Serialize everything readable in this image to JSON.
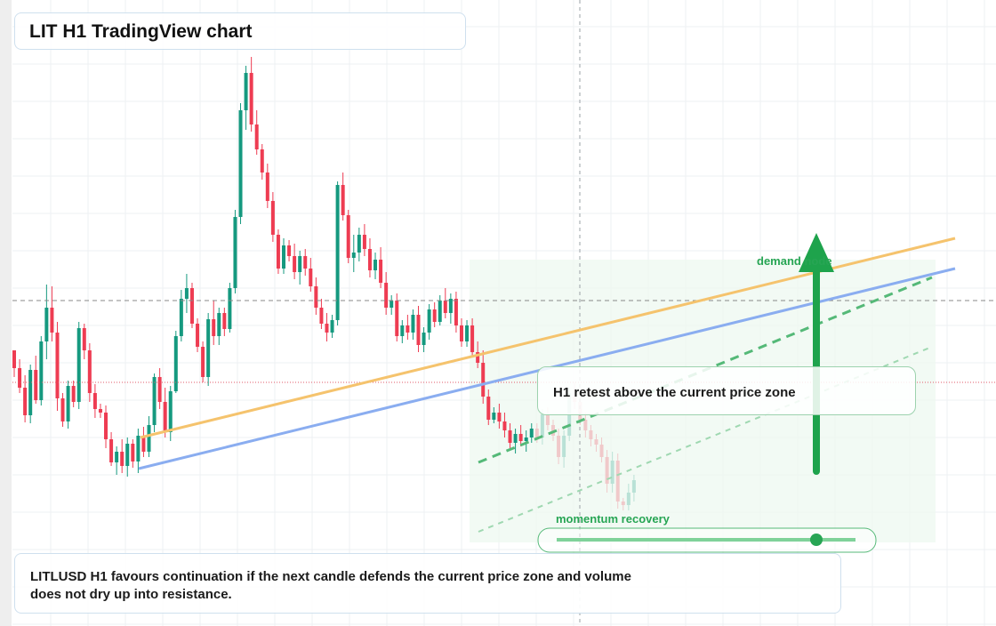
{
  "title": "LIT H1 TradingView chart",
  "annotations": {
    "retest_note": "H1 retest above the current price zone",
    "demand_label": "demand node",
    "momentum_label": "momentum recovery",
    "summary": "LITLUSD H1 favours continuation if the next candle defends the current price zone and volume does not dry up into resistance."
  },
  "colors": {
    "up": "#15997f",
    "down": "#ee3c52",
    "trend_orange": "#f5c36d",
    "trend_blue": "#8aadf0",
    "accent_green": "#1ea34c"
  },
  "chart_data": {
    "type": "candlestick",
    "title": "LIT H1 TradingView chart",
    "ylim": [
      0,
      704
    ],
    "grid": true,
    "reference_levels": [
      366,
      274
    ],
    "candles": [
      {
        "o": 310,
        "h": 310,
        "l": 280,
        "c": 290
      },
      {
        "o": 290,
        "h": 300,
        "l": 262,
        "c": 268
      },
      {
        "o": 268,
        "h": 282,
        "l": 229,
        "c": 237
      },
      {
        "o": 237,
        "h": 294,
        "l": 228,
        "c": 288
      },
      {
        "o": 288,
        "h": 304,
        "l": 250,
        "c": 254
      },
      {
        "o": 254,
        "h": 326,
        "l": 248,
        "c": 320
      },
      {
        "o": 320,
        "h": 384,
        "l": 300,
        "c": 358
      },
      {
        "o": 358,
        "h": 382,
        "l": 320,
        "c": 330
      },
      {
        "o": 330,
        "h": 342,
        "l": 242,
        "c": 256
      },
      {
        "o": 256,
        "h": 262,
        "l": 224,
        "c": 230
      },
      {
        "o": 230,
        "h": 276,
        "l": 222,
        "c": 270
      },
      {
        "o": 270,
        "h": 276,
        "l": 246,
        "c": 252
      },
      {
        "o": 252,
        "h": 342,
        "l": 244,
        "c": 335
      },
      {
        "o": 335,
        "h": 340,
        "l": 300,
        "c": 310
      },
      {
        "o": 310,
        "h": 318,
        "l": 252,
        "c": 262
      },
      {
        "o": 262,
        "h": 272,
        "l": 234,
        "c": 244
      },
      {
        "o": 244,
        "h": 250,
        "l": 234,
        "c": 240
      },
      {
        "o": 240,
        "h": 248,
        "l": 200,
        "c": 210
      },
      {
        "o": 210,
        "h": 218,
        "l": 180,
        "c": 184
      },
      {
        "o": 184,
        "h": 202,
        "l": 170,
        "c": 196
      },
      {
        "o": 196,
        "h": 210,
        "l": 172,
        "c": 180
      },
      {
        "o": 180,
        "h": 212,
        "l": 168,
        "c": 205
      },
      {
        "o": 205,
        "h": 210,
        "l": 178,
        "c": 185
      },
      {
        "o": 185,
        "h": 222,
        "l": 172,
        "c": 214
      },
      {
        "o": 214,
        "h": 224,
        "l": 190,
        "c": 196
      },
      {
        "o": 196,
        "h": 236,
        "l": 190,
        "c": 226
      },
      {
        "o": 226,
        "h": 284,
        "l": 218,
        "c": 280
      },
      {
        "o": 280,
        "h": 290,
        "l": 244,
        "c": 252
      },
      {
        "o": 252,
        "h": 268,
        "l": 212,
        "c": 218
      },
      {
        "o": 218,
        "h": 270,
        "l": 208,
        "c": 264
      },
      {
        "o": 264,
        "h": 332,
        "l": 262,
        "c": 326
      },
      {
        "o": 326,
        "h": 378,
        "l": 320,
        "c": 368
      },
      {
        "o": 368,
        "h": 396,
        "l": 352,
        "c": 380
      },
      {
        "o": 380,
        "h": 386,
        "l": 335,
        "c": 340
      },
      {
        "o": 340,
        "h": 346,
        "l": 308,
        "c": 314
      },
      {
        "o": 314,
        "h": 320,
        "l": 274,
        "c": 280
      },
      {
        "o": 280,
        "h": 352,
        "l": 270,
        "c": 345
      },
      {
        "o": 345,
        "h": 366,
        "l": 316,
        "c": 326
      },
      {
        "o": 326,
        "h": 358,
        "l": 316,
        "c": 352
      },
      {
        "o": 352,
        "h": 358,
        "l": 326,
        "c": 334
      },
      {
        "o": 334,
        "h": 386,
        "l": 330,
        "c": 380
      },
      {
        "o": 380,
        "h": 468,
        "l": 374,
        "c": 460
      },
      {
        "o": 460,
        "h": 588,
        "l": 452,
        "c": 580
      },
      {
        "o": 580,
        "h": 630,
        "l": 558,
        "c": 622
      },
      {
        "o": 622,
        "h": 640,
        "l": 556,
        "c": 564
      },
      {
        "o": 564,
        "h": 580,
        "l": 530,
        "c": 536
      },
      {
        "o": 536,
        "h": 542,
        "l": 502,
        "c": 510
      },
      {
        "o": 510,
        "h": 520,
        "l": 470,
        "c": 478
      },
      {
        "o": 478,
        "h": 488,
        "l": 432,
        "c": 440
      },
      {
        "o": 440,
        "h": 446,
        "l": 396,
        "c": 402
      },
      {
        "o": 402,
        "h": 436,
        "l": 396,
        "c": 428
      },
      {
        "o": 428,
        "h": 434,
        "l": 410,
        "c": 416
      },
      {
        "o": 416,
        "h": 430,
        "l": 390,
        "c": 398
      },
      {
        "o": 398,
        "h": 422,
        "l": 384,
        "c": 416
      },
      {
        "o": 416,
        "h": 424,
        "l": 394,
        "c": 402
      },
      {
        "o": 402,
        "h": 414,
        "l": 376,
        "c": 382
      },
      {
        "o": 382,
        "h": 392,
        "l": 350,
        "c": 358
      },
      {
        "o": 358,
        "h": 368,
        "l": 334,
        "c": 340
      },
      {
        "o": 340,
        "h": 352,
        "l": 320,
        "c": 330
      },
      {
        "o": 330,
        "h": 350,
        "l": 324,
        "c": 344
      },
      {
        "o": 344,
        "h": 500,
        "l": 338,
        "c": 496
      },
      {
        "o": 496,
        "h": 510,
        "l": 456,
        "c": 462
      },
      {
        "o": 462,
        "h": 468,
        "l": 408,
        "c": 414
      },
      {
        "o": 414,
        "h": 440,
        "l": 398,
        "c": 420
      },
      {
        "o": 420,
        "h": 448,
        "l": 410,
        "c": 440
      },
      {
        "o": 440,
        "h": 452,
        "l": 416,
        "c": 424
      },
      {
        "o": 424,
        "h": 436,
        "l": 392,
        "c": 400
      },
      {
        "o": 400,
        "h": 420,
        "l": 390,
        "c": 412
      },
      {
        "o": 412,
        "h": 426,
        "l": 380,
        "c": 386
      },
      {
        "o": 386,
        "h": 398,
        "l": 350,
        "c": 358
      },
      {
        "o": 358,
        "h": 372,
        "l": 350,
        "c": 366
      },
      {
        "o": 366,
        "h": 374,
        "l": 320,
        "c": 326
      },
      {
        "o": 326,
        "h": 344,
        "l": 318,
        "c": 338
      },
      {
        "o": 338,
        "h": 350,
        "l": 322,
        "c": 330
      },
      {
        "o": 330,
        "h": 356,
        "l": 322,
        "c": 350
      },
      {
        "o": 350,
        "h": 360,
        "l": 308,
        "c": 316
      },
      {
        "o": 316,
        "h": 336,
        "l": 308,
        "c": 330
      },
      {
        "o": 330,
        "h": 362,
        "l": 322,
        "c": 356
      },
      {
        "o": 356,
        "h": 364,
        "l": 336,
        "c": 342
      },
      {
        "o": 342,
        "h": 372,
        "l": 338,
        "c": 366
      },
      {
        "o": 366,
        "h": 380,
        "l": 346,
        "c": 352
      },
      {
        "o": 352,
        "h": 374,
        "l": 340,
        "c": 368
      },
      {
        "o": 368,
        "h": 376,
        "l": 330,
        "c": 338
      },
      {
        "o": 338,
        "h": 346,
        "l": 314,
        "c": 320
      },
      {
        "o": 320,
        "h": 344,
        "l": 314,
        "c": 338
      },
      {
        "o": 338,
        "h": 346,
        "l": 302,
        "c": 308
      },
      {
        "o": 308,
        "h": 320,
        "l": 290,
        "c": 296
      },
      {
        "o": 296,
        "h": 310,
        "l": 250,
        "c": 258
      },
      {
        "o": 258,
        "h": 266,
        "l": 226,
        "c": 232
      },
      {
        "o": 232,
        "h": 246,
        "l": 228,
        "c": 240
      },
      {
        "o": 240,
        "h": 250,
        "l": 222,
        "c": 230
      },
      {
        "o": 230,
        "h": 240,
        "l": 212,
        "c": 220
      },
      {
        "o": 220,
        "h": 228,
        "l": 200,
        "c": 206
      },
      {
        "o": 206,
        "h": 222,
        "l": 194,
        "c": 216
      },
      {
        "o": 216,
        "h": 226,
        "l": 202,
        "c": 208
      },
      {
        "o": 208,
        "h": 220,
        "l": 196,
        "c": 212
      },
      {
        "o": 212,
        "h": 228,
        "l": 206,
        "c": 222
      },
      {
        "o": 222,
        "h": 228,
        "l": 206,
        "c": 212
      },
      {
        "o": 212,
        "h": 244,
        "l": 204,
        "c": 238
      },
      {
        "o": 238,
        "h": 246,
        "l": 220,
        "c": 226
      },
      {
        "o": 226,
        "h": 232,
        "l": 208,
        "c": 214
      },
      {
        "o": 214,
        "h": 222,
        "l": 182,
        "c": 190
      },
      {
        "o": 190,
        "h": 220,
        "l": 178,
        "c": 214
      },
      {
        "o": 214,
        "h": 268,
        "l": 208,
        "c": 262
      },
      {
        "o": 262,
        "h": 274,
        "l": 244,
        "c": 252
      },
      {
        "o": 252,
        "h": 256,
        "l": 226,
        "c": 232
      },
      {
        "o": 232,
        "h": 240,
        "l": 212,
        "c": 220
      },
      {
        "o": 220,
        "h": 226,
        "l": 202,
        "c": 210
      },
      {
        "o": 210,
        "h": 216,
        "l": 196,
        "c": 204
      },
      {
        "o": 204,
        "h": 212,
        "l": 184,
        "c": 190
      },
      {
        "o": 190,
        "h": 198,
        "l": 150,
        "c": 160
      },
      {
        "o": 160,
        "h": 196,
        "l": 150,
        "c": 186
      },
      {
        "o": 186,
        "h": 194,
        "l": 132,
        "c": 140
      },
      {
        "o": 140,
        "h": 144,
        "l": 130,
        "c": 136
      },
      {
        "o": 136,
        "h": 160,
        "l": 130,
        "c": 150
      },
      {
        "o": 150,
        "h": 170,
        "l": 140,
        "c": 164
      }
    ]
  }
}
